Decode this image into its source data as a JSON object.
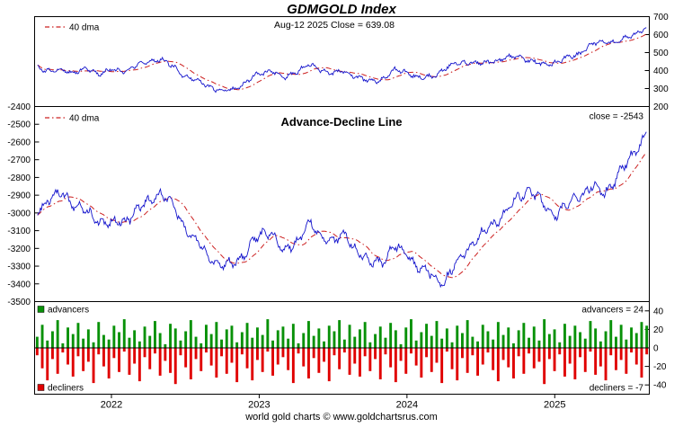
{
  "footer": "world gold charts © www.goldchartsrus.com",
  "colors": {
    "title": "#0000cc",
    "price_line": "#1414cc",
    "dma_line": "#cc2020",
    "advancers": "#089108",
    "decliners": "#e00000",
    "axis": "#000000"
  },
  "xaxis": {
    "xlim": [
      2021.48,
      2025.64
    ],
    "ticks": [
      2022,
      2023,
      2024,
      2025
    ],
    "labels": [
      "2022",
      "2023",
      "2024",
      "2025"
    ]
  },
  "chart_data": [
    {
      "name": "price",
      "type": "line",
      "title": "GDMGOLD Index",
      "annotation": "Aug-12 2025   Close = 639.08",
      "legend": [
        {
          "label": "40 dma",
          "style": "red-dash-dot"
        }
      ],
      "yaxis_side": "right",
      "ylim": [
        200,
        700
      ],
      "yticks": [
        200,
        300,
        400,
        500,
        600,
        700
      ],
      "x": [
        2021.5,
        2021.583,
        2021.667,
        2021.75,
        2021.833,
        2021.917,
        2022,
        2022.083,
        2022.167,
        2022.25,
        2022.333,
        2022.417,
        2022.5,
        2022.583,
        2022.667,
        2022.75,
        2022.833,
        2022.917,
        2023,
        2023.083,
        2023.167,
        2023.25,
        2023.333,
        2023.417,
        2023.5,
        2023.583,
        2023.667,
        2023.75,
        2023.833,
        2023.917,
        2024,
        2024.083,
        2024.167,
        2024.25,
        2024.333,
        2024.417,
        2024.5,
        2024.583,
        2024.667,
        2024.75,
        2024.833,
        2024.917,
        2025,
        2025.083,
        2025.167,
        2025.25,
        2025.333,
        2025.417,
        2025.5,
        2025.583,
        2025.62
      ],
      "series": [
        {
          "name": "GDMGOLD close",
          "values": [
            420,
            395,
            405,
            390,
            410,
            385,
            400,
            395,
            425,
            450,
            465,
            420,
            370,
            345,
            310,
            285,
            295,
            340,
            385,
            400,
            355,
            395,
            430,
            405,
            385,
            395,
            365,
            335,
            355,
            400,
            395,
            360,
            365,
            410,
            440,
            450,
            435,
            455,
            465,
            480,
            455,
            430,
            445,
            470,
            495,
            545,
            565,
            555,
            585,
            625,
            639.08
          ]
        }
      ],
      "derived": [
        {
          "name": "40 dma",
          "method": "moving-average"
        }
      ]
    },
    {
      "name": "advance_decline",
      "type": "line",
      "title": "Advance-Decline Line",
      "annotation": "close = -2543",
      "legend": [
        {
          "label": "40 dma",
          "style": "red-dash-dot"
        }
      ],
      "yaxis_side": "left",
      "ylim": [
        -3500,
        -2400
      ],
      "yticks": [
        -2400,
        -2500,
        -2600,
        -2700,
        -2800,
        -2900,
        -3000,
        -3100,
        -3200,
        -3300,
        -3400,
        -3500
      ],
      "x": [
        2021.5,
        2021.583,
        2021.667,
        2021.75,
        2021.833,
        2021.917,
        2022,
        2022.083,
        2022.167,
        2022.25,
        2022.333,
        2022.417,
        2022.5,
        2022.583,
        2022.667,
        2022.75,
        2022.833,
        2022.917,
        2023,
        2023.083,
        2023.167,
        2023.25,
        2023.333,
        2023.417,
        2023.5,
        2023.583,
        2023.667,
        2023.75,
        2023.833,
        2023.917,
        2024,
        2024.083,
        2024.167,
        2024.25,
        2024.333,
        2024.417,
        2024.5,
        2024.583,
        2024.667,
        2024.75,
        2024.833,
        2024.917,
        2025,
        2025.083,
        2025.167,
        2025.25,
        2025.333,
        2025.417,
        2025.5,
        2025.583,
        2025.62
      ],
      "series": [
        {
          "name": "Advance-Decline Line",
          "values": [
            -2980,
            -2920,
            -2890,
            -2950,
            -3000,
            -3040,
            -3060,
            -3050,
            -2990,
            -2940,
            -2880,
            -2960,
            -3080,
            -3170,
            -3250,
            -3300,
            -3290,
            -3210,
            -3130,
            -3100,
            -3230,
            -3160,
            -3060,
            -3130,
            -3160,
            -3130,
            -3210,
            -3290,
            -3270,
            -3190,
            -3230,
            -3310,
            -3350,
            -3390,
            -3290,
            -3190,
            -3130,
            -3060,
            -3000,
            -2910,
            -2870,
            -2950,
            -3010,
            -2960,
            -2900,
            -2850,
            -2890,
            -2800,
            -2710,
            -2600,
            -2543
          ]
        }
      ],
      "derived": [
        {
          "name": "40 dma",
          "method": "moving-average"
        }
      ]
    },
    {
      "name": "breadth",
      "type": "bar",
      "yaxis_side": "right",
      "ylim": [
        -50,
        50
      ],
      "yticks": [
        40,
        20,
        0,
        -20,
        -40
      ],
      "labels": {
        "advancers": "advancers",
        "advancers_value": "advancers = 24",
        "decliners": "decliners",
        "decliners_value": "decliners = -7"
      },
      "series": [
        {
          "name": "advancers",
          "values": [
            12,
            25,
            8,
            18,
            30,
            5,
            22,
            15,
            27,
            10,
            20,
            6,
            28,
            14,
            9,
            24,
            17,
            31,
            11,
            19,
            7,
            23,
            13,
            29,
            16,
            4,
            26,
            21,
            8,
            18,
            30,
            12,
            5,
            25,
            15,
            28,
            9,
            20,
            24,
            6,
            17,
            27,
            11,
            22,
            14,
            31,
            8,
            19,
            23,
            10,
            26,
            5,
            16,
            29,
            13,
            21,
            7,
            24,
            18,
            30,
            9,
            25,
            12,
            20,
            28,
            6,
            15,
            23,
            11,
            27,
            19,
            4,
            22,
            31,
            8,
            17,
            26,
            13,
            29,
            10,
            21,
            6,
            24,
            16,
            30,
            12,
            7,
            25,
            18,
            9,
            28,
            14,
            22,
            5,
            19,
            27,
            11,
            23,
            8,
            31,
            15,
            20,
            6,
            26,
            13,
            24,
            17,
            10,
            29,
            21,
            7,
            18,
            30,
            12,
            25,
            9,
            22,
            16,
            28,
            24
          ]
        },
        {
          "name": "decliners",
          "values": [
            -8,
            -22,
            -35,
            -12,
            -28,
            -5,
            -18,
            -31,
            -9,
            -25,
            -15,
            -38,
            -7,
            -20,
            -33,
            -11,
            -26,
            -4,
            -29,
            -17,
            -36,
            -10,
            -23,
            -6,
            -30,
            -14,
            -27,
            -39,
            -8,
            -21,
            -34,
            -12,
            -25,
            -5,
            -19,
            -32,
            -9,
            -28,
            -16,
            -37,
            -7,
            -22,
            -35,
            -13,
            -26,
            -4,
            -30,
            -18,
            -10,
            -24,
            -38,
            -6,
            -20,
            -33,
            -11,
            -27,
            -15,
            -36,
            -8,
            -23,
            -5,
            -29,
            -17,
            -31,
            -9,
            -25,
            -12,
            -34,
            -7,
            -21,
            -37,
            -14,
            -28,
            -6,
            -19,
            -32,
            -10,
            -26,
            -16,
            -38,
            -4,
            -23,
            -35,
            -11,
            -27,
            -8,
            -30,
            -18,
            -5,
            -24,
            -36,
            -13,
            -21,
            -33,
            -9,
            -28,
            -6,
            -22,
            -15,
            -39,
            -12,
            -25,
            -7,
            -31,
            -17,
            -34,
            -10,
            -26,
            -4,
            -29,
            -20,
            -35,
            -8,
            -24,
            -13,
            -28,
            -5,
            -18,
            -32,
            -7
          ]
        }
      ]
    }
  ]
}
